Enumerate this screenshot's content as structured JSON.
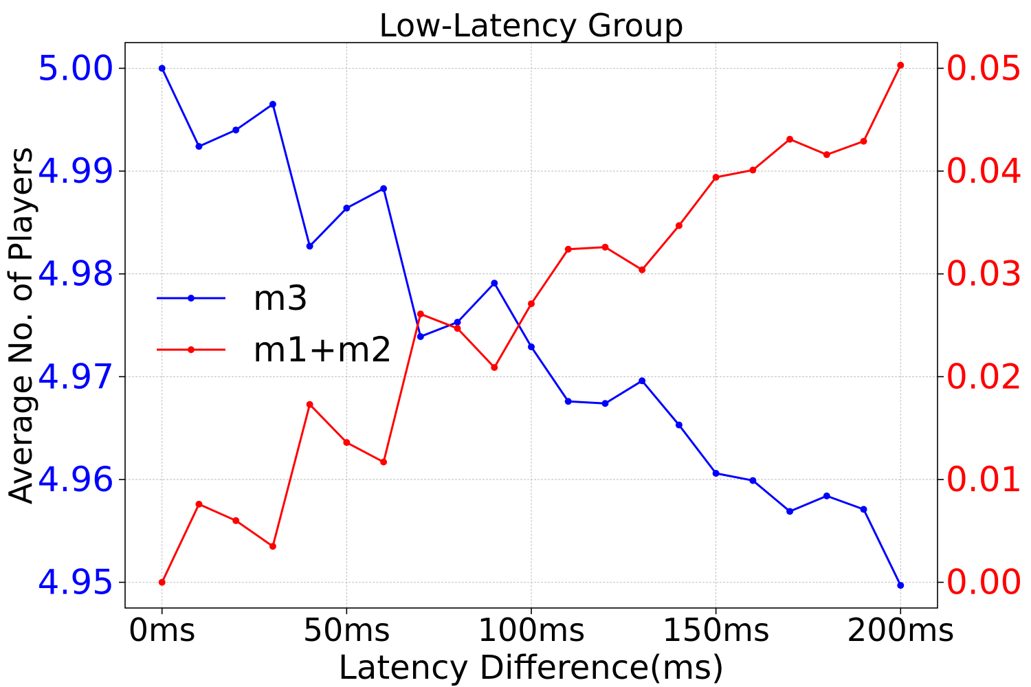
{
  "chart_data": {
    "type": "line",
    "title": "Low-Latency Group",
    "xlabel": "Latency Difference(ms)",
    "ylabel": "Average No. of Players",
    "y2label": "",
    "x": [
      0,
      10,
      20,
      30,
      40,
      50,
      60,
      70,
      80,
      90,
      100,
      110,
      120,
      130,
      140,
      150,
      160,
      170,
      180,
      190,
      200
    ],
    "xlim": [
      -10,
      210
    ],
    "ylim": [
      4.9475,
      5.0025
    ],
    "y2lim": [
      -0.0025,
      0.0525
    ],
    "grid": true,
    "legend_position": "center-left",
    "x_ticks": [
      0,
      50,
      100,
      150,
      200
    ],
    "x_tick_labels": [
      "0ms",
      "50ms",
      "100ms",
      "150ms",
      "200ms"
    ],
    "y_ticks": [
      4.95,
      4.96,
      4.97,
      4.98,
      4.99,
      5.0
    ],
    "y_tick_labels": [
      "4.95",
      "4.96",
      "4.97",
      "4.98",
      "4.99",
      "5.00"
    ],
    "y2_ticks": [
      0.0,
      0.01,
      0.02,
      0.03,
      0.04,
      0.05
    ],
    "y2_tick_labels": [
      "0.00",
      "0.01",
      "0.02",
      "0.03",
      "0.04",
      "0.05"
    ],
    "left_axis_color": "#0000ff",
    "right_axis_color": "#ff0000",
    "series": [
      {
        "name": "m3",
        "axis": "left",
        "color": "#0000ff",
        "values": [
          5.0,
          4.9924,
          4.994,
          4.9965,
          4.9827,
          4.9864,
          4.9883,
          4.9739,
          4.9753,
          4.9791,
          4.9729,
          4.9676,
          4.9674,
          4.9696,
          4.9653,
          4.9606,
          4.9599,
          4.9569,
          4.9584,
          4.9571,
          4.9497
        ]
      },
      {
        "name": "m1+m2",
        "axis": "right",
        "color": "#ff0000",
        "values": [
          0.0,
          0.0076,
          0.006,
          0.0035,
          0.0173,
          0.0136,
          0.0117,
          0.0261,
          0.0247,
          0.0209,
          0.0271,
          0.0324,
          0.0326,
          0.0304,
          0.0347,
          0.0394,
          0.0401,
          0.0431,
          0.0416,
          0.0429,
          0.0503
        ]
      }
    ]
  }
}
